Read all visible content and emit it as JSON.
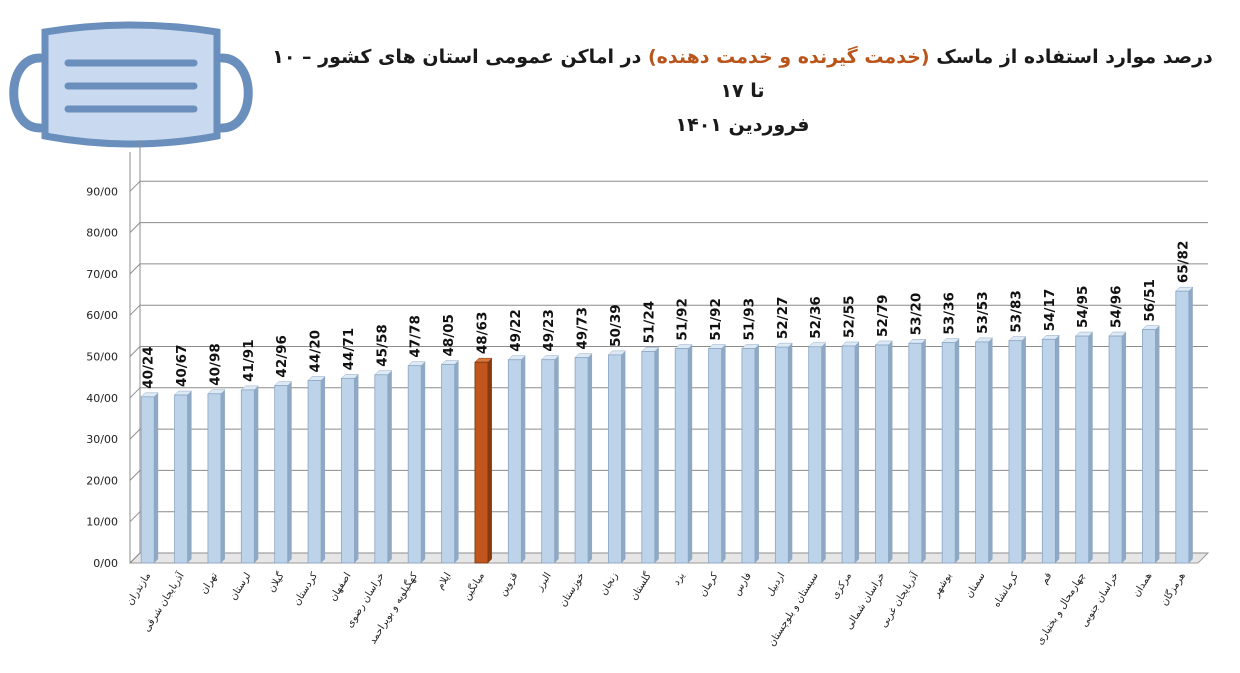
{
  "header": {
    "title_part1": "درصد موارد استفاده از ماسک",
    "title_accent": "(خدمت گیرنده و خدمت دهنده)",
    "title_part2": "در اماکن عمومی استان های کشور – ۱۰ تا ۱۷",
    "title_line2": "فروردین ۱۴۰۱",
    "mask_icon": "face-mask-icon"
  },
  "colors": {
    "bar": "#bcd3ea",
    "bar_side": "#8fa9c4",
    "highlight": "#c0561c",
    "highlight_side": "#8a3a10",
    "title_accent": "#b9541a",
    "mask_fill": "#c9daf0",
    "mask_stroke": "#6a8fbd"
  },
  "chart_data": {
    "type": "bar",
    "title": "درصد موارد استفاده از ماسک (خدمت گیرنده و خدمت دهنده) در اماکن عمومی استان های کشور – ۱۰ تا ۱۷ فروردین ۱۴۰۱",
    "xlabel": "",
    "ylabel": "",
    "ylim": [
      0,
      100
    ],
    "yticks": [
      "0/00",
      "10/00",
      "20/00",
      "30/00",
      "40/00",
      "50/00",
      "60/00",
      "70/00",
      "80/00",
      "90/00"
    ],
    "grid": true,
    "legend": "none",
    "highlight_category": "میانگین",
    "categories": [
      "مازندران",
      "آذربایجان شرقی",
      "تهران",
      "لرستان",
      "گیلان",
      "کردستان",
      "اصفهان",
      "خراسان رضوی",
      "کهگیلویه و بویراحمد",
      "ایلام",
      "میانگین",
      "قزوین",
      "البرز",
      "خوزستان",
      "زنجان",
      "گلستان",
      "یزد",
      "کرمان",
      "فارس",
      "اردبیل",
      "سیستان و بلوچستان",
      "مرکزی",
      "خراسان شمالی",
      "آذربایجان غربی",
      "بوشهر",
      "سمنان",
      "کرمانشاه",
      "قم",
      "چهارمحال و بختیاری",
      "خراسان جنوبی",
      "همدان",
      "هرمزگان"
    ],
    "values": [
      40.24,
      40.67,
      40.98,
      41.91,
      42.96,
      44.2,
      44.71,
      45.58,
      47.78,
      48.05,
      48.63,
      49.22,
      49.23,
      49.73,
      50.39,
      51.24,
      51.92,
      51.92,
      51.93,
      52.27,
      52.36,
      52.55,
      52.79,
      53.2,
      53.36,
      53.53,
      53.83,
      54.17,
      54.95,
      54.96,
      56.51,
      65.82
    ],
    "value_labels": [
      "40/24",
      "40/67",
      "40/98",
      "41/91",
      "42/96",
      "44/20",
      "44/71",
      "45/58",
      "47/78",
      "48/05",
      "48/63",
      "49/22",
      "49/23",
      "49/73",
      "50/39",
      "51/24",
      "51/92",
      "51/92",
      "51/93",
      "52/27",
      "52/36",
      "52/55",
      "52/79",
      "53/20",
      "53/36",
      "53/53",
      "53/83",
      "54/17",
      "54/95",
      "54/96",
      "56/51",
      "65/82"
    ]
  }
}
